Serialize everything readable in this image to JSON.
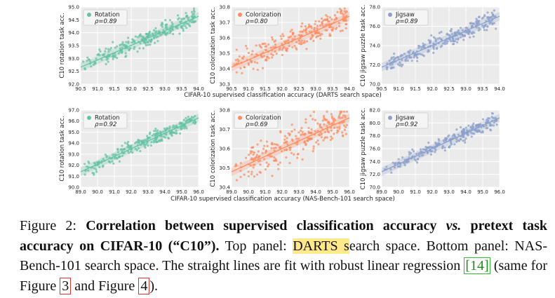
{
  "figure": {
    "panels": [
      {
        "row": 0,
        "col": 0,
        "name": "Rotation",
        "rho": "ρ=0.89",
        "ylabel": "C10 rotation task acc.",
        "color": "#66c2a5",
        "xticks": [
          "90.5",
          "91.0",
          "91.5",
          "92.0",
          "92.5",
          "93.0",
          "93.5",
          "94.0"
        ],
        "yticks": [
          "92.0",
          "92.5",
          "93.0",
          "93.5",
          "94.0",
          "94.5",
          "95.0"
        ]
      },
      {
        "row": 0,
        "col": 1,
        "name": "Colorization",
        "rho": "ρ=0.80",
        "ylabel": "C10 colorization task acc.",
        "color": "#fc8d62",
        "xticks": [
          "90.5",
          "91.0",
          "91.5",
          "92.0",
          "92.5",
          "93.0",
          "93.5",
          "94.0"
        ],
        "yticks": [
          "30.3",
          "30.4",
          "30.5",
          "30.6",
          "30.7",
          "30.8"
        ]
      },
      {
        "row": 0,
        "col": 2,
        "name": "Jigsaw",
        "rho": "ρ=0.89",
        "ylabel": "C10 jigsaw puzzle task acc.",
        "color": "#8da0cb",
        "xticks": [
          "90.5",
          "91.0",
          "91.5",
          "92.0",
          "92.5",
          "93.0",
          "93.5",
          "94.0"
        ],
        "yticks": [
          "70.0",
          "72.0",
          "74.0",
          "76.0",
          "78.0"
        ]
      },
      {
        "row": 1,
        "col": 0,
        "name": "Rotation",
        "rho": "ρ=0.92",
        "ylabel": "C10 rotation task acc.",
        "color": "#66c2a5",
        "xticks": [
          "89.0",
          "90.0",
          "91.0",
          "92.0",
          "93.0",
          "94.0",
          "95.0",
          "96.0"
        ],
        "yticks": [
          "90.0",
          "91.0",
          "92.0",
          "93.0",
          "94.0",
          "95.0",
          "96.0",
          "97.0"
        ]
      },
      {
        "row": 1,
        "col": 1,
        "name": "Colorization",
        "rho": "ρ=0.69",
        "ylabel": "C10 colorization task acc.",
        "color": "#fc8d62",
        "xticks": [
          "89.0",
          "90.0",
          "91.0",
          "92.0",
          "93.0",
          "94.0",
          "95.0",
          "96.0"
        ],
        "yticks": [
          "30.4",
          "30.5",
          "30.6",
          "30.7",
          "30.8"
        ]
      },
      {
        "row": 1,
        "col": 2,
        "name": "Jigsaw",
        "rho": "ρ=0.92",
        "ylabel": "C10 jigsaw puzzle task acc.",
        "color": "#8da0cb",
        "xticks": [
          "89.0",
          "90.0",
          "91.0",
          "92.0",
          "93.0",
          "94.0",
          "95.0",
          "96.0"
        ],
        "yticks": [
          "70.0",
          "72.0",
          "74.0",
          "76.0",
          "78.0",
          "80.0",
          "82.0"
        ]
      }
    ],
    "xlabels": [
      "CIFAR-10 supervised classification accuracy (DARTS search space)",
      "CIFAR-10 supervised classification accuracy (NAS-Bench-101 search space)"
    ]
  },
  "caption": {
    "figure_label": "Figure 2:",
    "bold_text": "Correlation between supervised classification accuracy",
    "vs": "vs.",
    "bold_text_2": "pretext task accuracy on CIFAR-10 (“C10”).",
    "text_1": " Top panel: ",
    "highlight": "DARTS s",
    "text_2": "earch space. Bottom panel: NAS-Bench-101 search space. The straight lines are fit with robust linear regression ",
    "cite": "[14]",
    "text_3": " (same for Figure ",
    "ref1": "3",
    "text_4": " and Figure ",
    "ref2": "4",
    "text_5": ")."
  }
}
